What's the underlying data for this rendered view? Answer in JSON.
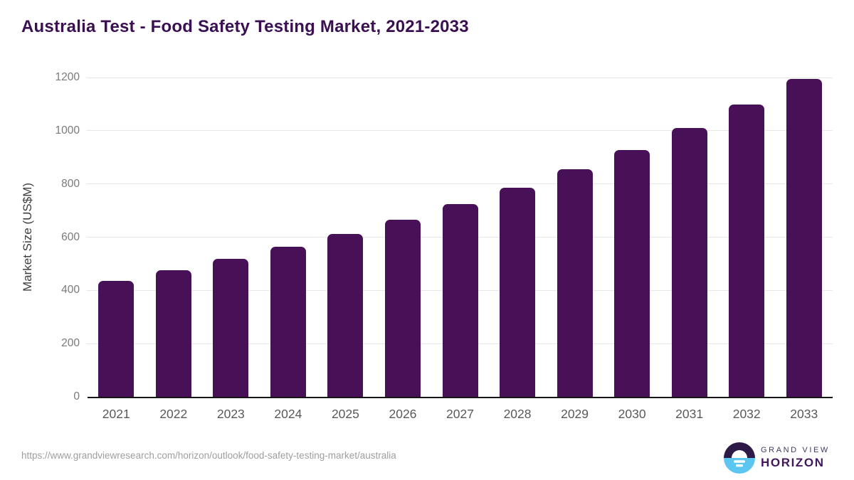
{
  "header": {
    "title": "Australia Test - Food Safety Testing Market, 2021-2033"
  },
  "chart_data": {
    "type": "bar",
    "title": "Australia Test - Food Safety Testing Market, 2021-2033",
    "categories": [
      "2021",
      "2022",
      "2023",
      "2024",
      "2025",
      "2026",
      "2027",
      "2028",
      "2029",
      "2030",
      "2031",
      "2032",
      "2033"
    ],
    "values": [
      437,
      477,
      519,
      563,
      611,
      665,
      723,
      785,
      855,
      927,
      1010,
      1098,
      1195
    ],
    "series_name": "Market Size",
    "xlabel": "",
    "ylabel": "Market Size (US$M)",
    "ylim": [
      0,
      1200
    ],
    "yticks": [
      0,
      200,
      400,
      600,
      800,
      1000,
      1200
    ],
    "grid": true,
    "legend": false,
    "bar_color": "#481057"
  },
  "colors": {
    "bar": "#481057",
    "title": "#3b1053",
    "gridline": "#e8e8e8",
    "axis_line": "#161616",
    "y_tick_label": "#7a7a7a",
    "x_tick_label": "#595959",
    "source_url": "#9e9e9e",
    "logo_dark": "#2e1a47",
    "logo_blue": "#5bc6f0",
    "logo_text_top": "#3f3a63",
    "logo_text_bottom": "#42175c"
  },
  "footer": {
    "source_url": "https://www.grandviewresearch.com/horizon/outlook/food-safety-testing-market/australia",
    "logo": {
      "top_text": "GRAND VIEW",
      "bottom_text": "HORIZON"
    }
  }
}
